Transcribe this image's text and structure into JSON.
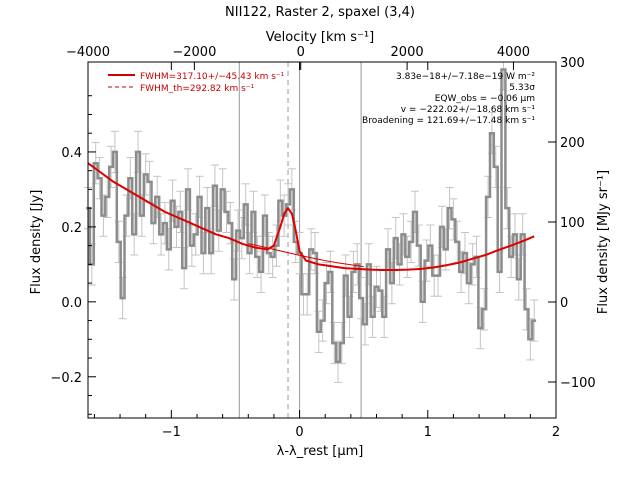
{
  "chart_data": {
    "type": "line",
    "title": "NII122, Raster 2, spaxel (3,4)",
    "xlabel": "λ-λ_rest [μm]",
    "ylabel": "Flux density [Jy]",
    "top_axis_label": "Velocity [km s⁻¹]",
    "right_axis_label": "Flux density [MJy sr⁻¹]",
    "xlim": [
      -1.65,
      2.0
    ],
    "ylim": [
      -0.31,
      0.64
    ],
    "top_xlim": [
      -4000,
      4800
    ],
    "right_ylim": [
      -145,
      300
    ],
    "x_ticks": [
      -1,
      0,
      1,
      2
    ],
    "x_tick_labels": [
      "−1",
      "0",
      "1",
      "2"
    ],
    "y_ticks": [
      -0.2,
      0.0,
      0.2,
      0.4
    ],
    "y_tick_labels": [
      "−0.2",
      "0.0",
      "0.2",
      "0.4"
    ],
    "top_ticks": [
      -4000,
      -2000,
      0,
      2000,
      4000
    ],
    "top_tick_labels": [
      "−4000",
      "−2000",
      "0",
      "2000",
      "4000"
    ],
    "right_ticks": [
      -100,
      0,
      100,
      200,
      300
    ],
    "right_tick_labels": [
      "−100",
      "0",
      "100",
      "200",
      "300"
    ],
    "vertical_lines_solid": [
      -0.47,
      0.0,
      0.48
    ],
    "vertical_lines_dashed": [
      -0.09
    ],
    "legend": {
      "position": "top-left",
      "entries": [
        {
          "text": "FWHM=317.10+/−45.43 km s⁻¹",
          "style": "solid",
          "color": "#cc0000"
        },
        {
          "text": "FWHM_th=292.82 km s⁻¹",
          "style": "dashed",
          "color": "#cc0000"
        }
      ]
    },
    "annotations": [
      "3.83e−18+/−7.18e−19 W m⁻²",
      "5.33σ",
      "EQW_obs = −0.06 μm",
      "v = −222.02+/−18.68 km s⁻¹",
      "Broadening = 121.69+/−17.48 km s⁻¹"
    ],
    "series": [
      {
        "name": "Spectrum",
        "color": "#8c8c8c",
        "x": [
          -1.65,
          -1.62,
          -1.59,
          -1.56,
          -1.53,
          -1.5,
          -1.47,
          -1.44,
          -1.41,
          -1.38,
          -1.35,
          -1.32,
          -1.29,
          -1.26,
          -1.23,
          -1.2,
          -1.17,
          -1.14,
          -1.11,
          -1.08,
          -1.05,
          -1.02,
          -0.99,
          -0.96,
          -0.93,
          -0.9,
          -0.87,
          -0.84,
          -0.81,
          -0.78,
          -0.75,
          -0.72,
          -0.69,
          -0.66,
          -0.63,
          -0.6,
          -0.57,
          -0.54,
          -0.51,
          -0.48,
          -0.45,
          -0.42,
          -0.39,
          -0.36,
          -0.33,
          -0.3,
          -0.27,
          -0.24,
          -0.21,
          -0.18,
          -0.15,
          -0.12,
          -0.09,
          -0.06,
          -0.03,
          0.0,
          0.03,
          0.06,
          0.09,
          0.12,
          0.15,
          0.18,
          0.21,
          0.24,
          0.27,
          0.3,
          0.33,
          0.36,
          0.39,
          0.42,
          0.45,
          0.48,
          0.51,
          0.54,
          0.57,
          0.6,
          0.63,
          0.66,
          0.69,
          0.72,
          0.75,
          0.78,
          0.81,
          0.84,
          0.87,
          0.9,
          0.93,
          0.96,
          0.99,
          1.02,
          1.05,
          1.08,
          1.11,
          1.14,
          1.17,
          1.2,
          1.23,
          1.26,
          1.29,
          1.32,
          1.35,
          1.38,
          1.41,
          1.44,
          1.47,
          1.5,
          1.53,
          1.56,
          1.59,
          1.62,
          1.65,
          1.68,
          1.71,
          1.74,
          1.77,
          1.8,
          1.83
        ],
        "values": [
          0.25,
          0.1,
          0.37,
          0.33,
          0.23,
          0.28,
          0.36,
          0.4,
          0.16,
          0.01,
          0.23,
          0.33,
          0.18,
          0.4,
          0.23,
          0.34,
          0.32,
          0.21,
          0.28,
          0.18,
          0.21,
          0.14,
          0.27,
          0.2,
          0.24,
          0.09,
          0.3,
          0.15,
          0.18,
          0.28,
          0.13,
          0.25,
          0.13,
          0.31,
          0.19,
          0.3,
          0.24,
          0.21,
          0.06,
          0.19,
          0.17,
          0.26,
          0.13,
          0.24,
          0.12,
          0.08,
          0.23,
          0.13,
          0.12,
          0.15,
          0.27,
          0.23,
          0.26,
          0.3,
          0.16,
          0.13,
          0.02,
          0.02,
          0.14,
          0.13,
          -0.08,
          -0.05,
          0.05,
          0.08,
          -0.11,
          -0.16,
          -0.11,
          0.07,
          -0.04,
          0.08,
          0.1,
          0.01,
          -0.06,
          0.1,
          -0.04,
          0.04,
          0.03,
          -0.04,
          0.14,
          0.05,
          0.17,
          0.1,
          0.18,
          0.12,
          0.16,
          0.24,
          0.15,
          0.0,
          0.11,
          0.15,
          0.07,
          0.07,
          0.2,
          0.14,
          0.25,
          0.22,
          0.16,
          0.08,
          0.13,
          0.05,
          0.1,
          0.12,
          -0.07,
          -0.02,
          0.28,
          0.45,
          0.36,
          0.08,
          0.62,
          0.25,
          0.12,
          0.18,
          0.06,
          0.18,
          -0.02,
          -0.1,
          -0.05
        ],
        "error": 0.055
      },
      {
        "name": "Fit",
        "color": "#dd0000",
        "x": [
          -1.65,
          -1.55,
          -1.45,
          -1.35,
          -1.25,
          -1.15,
          -1.05,
          -0.95,
          -0.85,
          -0.75,
          -0.65,
          -0.55,
          -0.45,
          -0.35,
          -0.25,
          -0.2,
          -0.15,
          -0.12,
          -0.09,
          -0.06,
          -0.03,
          0.0,
          0.05,
          0.15,
          0.25,
          0.35,
          0.45,
          0.55,
          0.65,
          0.75,
          0.85,
          0.95,
          1.05,
          1.15,
          1.25,
          1.35,
          1.45,
          1.55,
          1.65,
          1.75,
          1.83
        ],
        "values": [
          0.37,
          0.345,
          0.32,
          0.3,
          0.28,
          0.26,
          0.24,
          0.225,
          0.21,
          0.195,
          0.18,
          0.17,
          0.155,
          0.145,
          0.14,
          0.15,
          0.2,
          0.235,
          0.25,
          0.235,
          0.19,
          0.135,
          0.11,
          0.1,
          0.095,
          0.09,
          0.088,
          0.086,
          0.085,
          0.085,
          0.086,
          0.088,
          0.092,
          0.098,
          0.105,
          0.115,
          0.125,
          0.138,
          0.15,
          0.163,
          0.175
        ]
      },
      {
        "name": "Continuum",
        "color": "#dd0000",
        "x": [
          -0.4,
          -0.3,
          -0.2,
          -0.1,
          0.0,
          0.1,
          0.2,
          0.3,
          0.4,
          0.5
        ],
        "values": [
          0.155,
          0.148,
          0.14,
          0.132,
          0.124,
          0.117,
          0.11,
          0.104,
          0.099,
          0.094
        ]
      }
    ]
  }
}
